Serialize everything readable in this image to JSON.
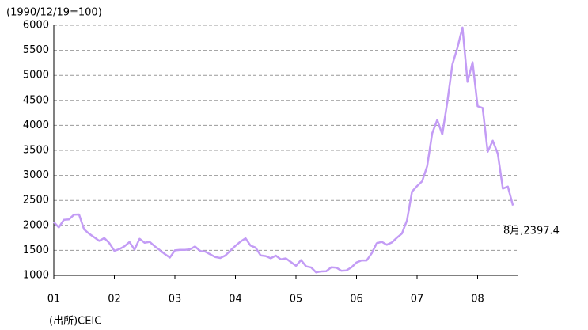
{
  "chart_data": {
    "type": "line",
    "ylabel": "(1990/12/19=100)",
    "source": "(出所)CEIC",
    "annotation": "8月,2397.4",
    "categories": [
      "01",
      null,
      null,
      null,
      null,
      null,
      null,
      null,
      null,
      null,
      null,
      null,
      "02",
      null,
      null,
      null,
      null,
      null,
      null,
      null,
      null,
      null,
      null,
      null,
      "03",
      null,
      null,
      null,
      null,
      null,
      null,
      null,
      null,
      null,
      null,
      null,
      "04",
      null,
      null,
      null,
      null,
      null,
      null,
      null,
      null,
      null,
      null,
      null,
      "05",
      null,
      null,
      null,
      null,
      null,
      null,
      null,
      null,
      null,
      null,
      null,
      "06",
      null,
      null,
      null,
      null,
      null,
      null,
      null,
      null,
      null,
      null,
      null,
      "07",
      null,
      null,
      null,
      null,
      null,
      null,
      null,
      null,
      null,
      null,
      null,
      "08",
      null,
      null,
      null,
      null,
      null,
      null,
      null
    ],
    "series": [
      {
        "color": "#c39cf5",
        "values": [
          2065,
          1960,
          2112,
          2120,
          2214,
          2218,
          1920,
          1834,
          1764,
          1690,
          1747,
          1646,
          1491,
          1525,
          1580,
          1667,
          1515,
          1732,
          1652,
          1670,
          1582,
          1507,
          1427,
          1357,
          1500,
          1511,
          1510,
          1521,
          1577,
          1487,
          1476,
          1421,
          1367,
          1348,
          1397,
          1497,
          1590,
          1675,
          1742,
          1595,
          1555,
          1399,
          1386,
          1342,
          1396,
          1320,
          1340,
          1266,
          1191,
          1306,
          1181,
          1159,
          1060,
          1080,
          1083,
          1162,
          1155,
          1092,
          1099,
          1161,
          1258,
          1299,
          1298,
          1440,
          1641,
          1672,
          1612,
          1658,
          1752,
          1837,
          2099,
          2675,
          2786,
          2881,
          3183,
          3841,
          4109,
          3820,
          4471,
          5218,
          5552,
          5955,
          4871,
          5262,
          4383,
          4348,
          3473,
          3693,
          3433,
          2736,
          2775,
          2397.4
        ]
      }
    ],
    "ylim": [
      1000,
      6000
    ],
    "yticks": [
      1000,
      1500,
      2000,
      2500,
      3000,
      3500,
      4000,
      4500,
      5000,
      5500,
      6000
    ],
    "grid": true
  }
}
